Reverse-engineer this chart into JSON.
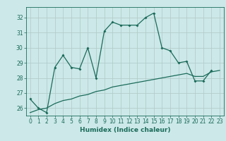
{
  "title": "",
  "xlabel": "Humidex (Indice chaleur)",
  "bg_color": "#cce8e8",
  "line_color": "#1a6b5a",
  "grid_color": "#b0c8c8",
  "x_data": [
    0,
    1,
    2,
    3,
    4,
    5,
    6,
    7,
    8,
    9,
    10,
    11,
    12,
    13,
    14,
    15,
    16,
    17,
    18,
    19,
    20,
    21,
    22,
    23
  ],
  "y_series1": [
    26.6,
    26.0,
    25.7,
    28.7,
    29.5,
    28.7,
    28.6,
    30.0,
    28.0,
    31.1,
    31.7,
    31.5,
    31.5,
    31.5,
    32.0,
    32.3,
    30.0,
    29.8,
    29.0,
    29.1,
    27.8,
    27.8,
    28.5,
    null
  ],
  "y_series2": [
    25.7,
    25.9,
    26.0,
    26.3,
    26.5,
    26.6,
    26.8,
    26.9,
    27.1,
    27.2,
    27.4,
    27.5,
    27.6,
    27.7,
    27.8,
    27.9,
    28.0,
    28.1,
    28.2,
    28.3,
    28.1,
    28.1,
    28.4,
    28.5
  ],
  "ylim": [
    25.5,
    32.7
  ],
  "yticks": [
    26,
    27,
    28,
    29,
    30,
    31,
    32
  ],
  "xlim": [
    -0.5,
    23.5
  ],
  "xticks": [
    0,
    1,
    2,
    3,
    4,
    5,
    6,
    7,
    8,
    9,
    10,
    11,
    12,
    13,
    14,
    15,
    16,
    17,
    18,
    19,
    20,
    21,
    22,
    23
  ]
}
